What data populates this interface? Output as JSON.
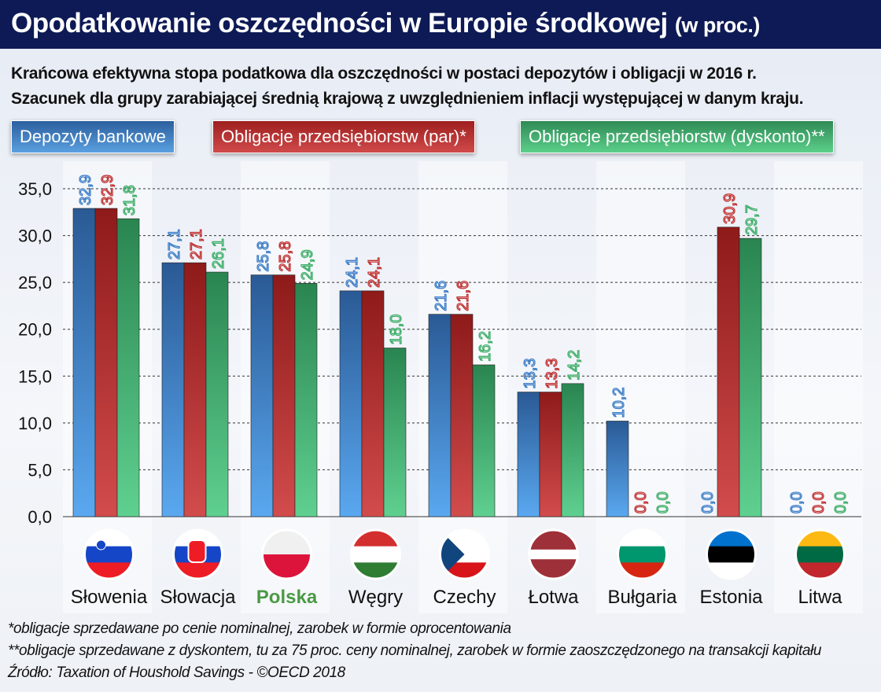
{
  "header": {
    "title": "Opodatkowanie oszczędności w Europie środkowej",
    "title_unit": "(w proc.)"
  },
  "subtitle": [
    "Krańcowa efektywna stopa podatkowa dla oszczędności w postaci depozytów i obligacji w 2016 r.",
    "Szacunek dla grupy zarabiającej średnią krajową z uwzględnieniem inflacji występującej w danym kraju."
  ],
  "chart_data": {
    "type": "bar",
    "categories": [
      "Słowenia",
      "Słowacja",
      "Polska",
      "Węgry",
      "Czechy",
      "Łotwa",
      "Bułgaria",
      "Estonia",
      "Litwa"
    ],
    "highlight_category": "Polska",
    "highlight_color": "#4a9a45",
    "ylim": [
      0,
      35
    ],
    "yticks": [
      "0,0",
      "5,0",
      "10,0",
      "15,0",
      "20,0",
      "25,0",
      "30,0",
      "35,0"
    ],
    "grid": true,
    "legend_placement": "top",
    "series": [
      {
        "name": "Depozyty bankowe",
        "color": "#3f7fc8",
        "values": [
          32.9,
          27.1,
          25.8,
          24.1,
          21.6,
          13.3,
          10.2,
          0.0,
          0.0
        ],
        "labels": [
          "32,9",
          "27,1",
          "25,8",
          "24,1",
          "21,6",
          "13,3",
          "10,2",
          "0,0",
          "0,0"
        ]
      },
      {
        "name": "Obligacje przedsiębiorstw (par)*",
        "color": "#c03434",
        "values": [
          32.9,
          27.1,
          25.8,
          24.1,
          21.6,
          13.3,
          0.0,
          30.9,
          0.0
        ],
        "labels": [
          "32,9",
          "27,1",
          "25,8",
          "24,1",
          "21,6",
          "13,3",
          "0,0",
          "30,9",
          "0,0"
        ]
      },
      {
        "name": "Obligacje przedsiębiorstw (dyskonto)**",
        "color": "#3fae6a",
        "values": [
          31.8,
          26.1,
          24.9,
          18.0,
          16.2,
          14.2,
          0.0,
          29.7,
          0.0
        ],
        "labels": [
          "31,8",
          "26,1",
          "24,9",
          "18,0",
          "16,2",
          "14,2",
          "0,0",
          "29,7",
          "0,0"
        ]
      }
    ]
  },
  "footnotes": [
    "*obligacje sprzedawane po cenie nominalnej, zarobek w formie oprocentowania",
    "**obligacje sprzedawane z dyskontem, tu za 75 proc. ceny nominalnej, zarobek w formie zaoszczędzonego na transakcji kapitału",
    "Źródło: Taxation of Houshold Savings - ©OECD 2018"
  ]
}
